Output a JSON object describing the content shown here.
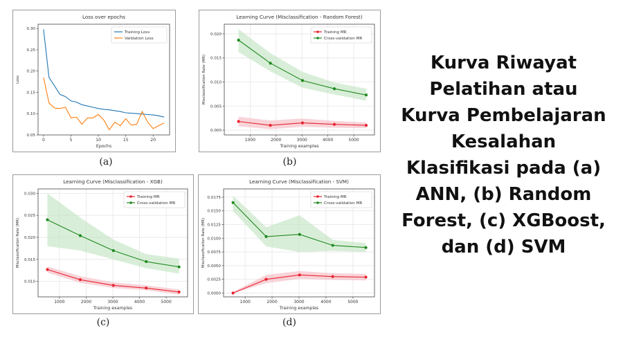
{
  "side_text_lines": [
    "Kurva Riwayat",
    "Pelatihan atau",
    "Kurva Pembelajaran",
    "Kesalahan",
    "Klasifikasi pada (a)",
    "ANN, (b) Random",
    "Forest, (c) XGBoost,",
    "dan (d) SVM"
  ],
  "captions": {
    "a": "(a)",
    "b": "(b)",
    "c": "(c)",
    "d": "(d)"
  },
  "colors": {
    "training_loss": "#1f77b4",
    "validation_loss": "#ff7f0e",
    "training_mr": "#e8222e",
    "cv_mr": "#1d8a1d",
    "training_band": "#f4b8bf",
    "cv_band": "#bfe3bf"
  },
  "chart_data": [
    {
      "id": "a",
      "type": "line",
      "title": "Loss over epochs",
      "xlabel": "Epochs",
      "ylabel": "Loss",
      "xlim": [
        -1,
        23
      ],
      "ylim": [
        0.05,
        0.31
      ],
      "xticks": [
        0,
        5,
        10,
        15,
        20
      ],
      "yticks": [
        0.05,
        0.1,
        0.15,
        0.2,
        0.25,
        0.3
      ],
      "ytick_labels": [
        "0.05",
        "0.10",
        "0.15",
        "0.20",
        "0.25",
        "0.30"
      ],
      "grid": false,
      "legend": "top-right",
      "series": [
        {
          "name": "Training Loss",
          "color_key": "training_loss",
          "markers": false,
          "x": [
            0,
            1,
            2,
            3,
            4,
            5,
            6,
            7,
            8,
            9,
            10,
            11,
            12,
            13,
            14,
            15,
            16,
            17,
            18,
            19,
            20,
            21,
            22
          ],
          "values": [
            0.298,
            0.185,
            0.165,
            0.145,
            0.14,
            0.13,
            0.127,
            0.121,
            0.118,
            0.115,
            0.112,
            0.11,
            0.109,
            0.107,
            0.105,
            0.102,
            0.101,
            0.1,
            0.099,
            0.098,
            0.097,
            0.095,
            0.092
          ]
        },
        {
          "name": "Validation Loss",
          "color_key": "validation_loss",
          "markers": false,
          "x": [
            0,
            1,
            2,
            3,
            4,
            5,
            6,
            7,
            8,
            9,
            10,
            11,
            12,
            13,
            14,
            15,
            16,
            17,
            18,
            19,
            20,
            21,
            22
          ],
          "values": [
            0.185,
            0.125,
            0.113,
            0.112,
            0.115,
            0.09,
            0.092,
            0.075,
            0.09,
            0.09,
            0.098,
            0.085,
            0.062,
            0.08,
            0.072,
            0.088,
            0.073,
            0.075,
            0.105,
            0.08,
            0.065,
            0.072,
            0.078
          ]
        }
      ]
    },
    {
      "id": "b",
      "type": "line",
      "title": "Learning Curve (Misclassification - Random Forest)",
      "xlabel": "Training examples",
      "ylabel": "Misclassification Rate (MR)",
      "xlim": [
        0,
        5800
      ],
      "ylim": [
        -0.001,
        0.022
      ],
      "xticks": [
        1000,
        2000,
        3000,
        4000,
        5000
      ],
      "yticks": [
        0.0,
        0.005,
        0.01,
        0.015,
        0.02
      ],
      "ytick_labels": [
        "0.000",
        "0.005",
        "0.010",
        "0.015",
        "0.020"
      ],
      "grid": true,
      "legend": "top-right",
      "series": [
        {
          "name": "Training MR",
          "color_key": "training_mr",
          "band_key": "training_band",
          "markers": true,
          "x": [
            550,
            1780,
            3020,
            4250,
            5480
          ],
          "values": [
            0.0018,
            0.001,
            0.0015,
            0.0012,
            0.001
          ],
          "lower": [
            0.0008,
            0.0002,
            0.0007,
            0.0005,
            0.0004
          ],
          "upper": [
            0.0028,
            0.002,
            0.0024,
            0.0019,
            0.0016
          ]
        },
        {
          "name": "Cross-validation MR",
          "color_key": "cv_mr",
          "band_key": "cv_band",
          "markers": true,
          "x": [
            550,
            1780,
            3020,
            4250,
            5480
          ],
          "values": [
            0.0187,
            0.0139,
            0.0103,
            0.0086,
            0.0073
          ],
          "lower": [
            0.0162,
            0.0122,
            0.0088,
            0.0074,
            0.0061
          ],
          "upper": [
            0.021,
            0.016,
            0.0121,
            0.0099,
            0.0086
          ]
        }
      ]
    },
    {
      "id": "c",
      "type": "line",
      "title": "Learning Curve (Misclassification - XGB)",
      "xlabel": "Training examples",
      "ylabel": "Misclassification Rate (MR)",
      "xlim": [
        200,
        5800
      ],
      "ylim": [
        0.0065,
        0.031
      ],
      "xticks": [
        1000,
        2000,
        3000,
        4000,
        5000
      ],
      "yticks": [
        0.01,
        0.015,
        0.02,
        0.025,
        0.03
      ],
      "ytick_labels": [
        "0.010",
        "0.015",
        "0.020",
        "0.025",
        "0.030"
      ],
      "grid": true,
      "legend": "top-right",
      "series": [
        {
          "name": "Training MR",
          "color_key": "training_mr",
          "band_key": "training_band",
          "markers": true,
          "x": [
            550,
            1780,
            3020,
            4250,
            5480
          ],
          "values": [
            0.0127,
            0.0104,
            0.0091,
            0.0085,
            0.0076
          ],
          "lower": [
            0.012,
            0.0097,
            0.0085,
            0.008,
            0.007
          ],
          "upper": [
            0.0134,
            0.0112,
            0.0098,
            0.0091,
            0.0082
          ]
        },
        {
          "name": "Cross-validation MR",
          "color_key": "cv_mr",
          "band_key": "cv_band",
          "markers": true,
          "x": [
            550,
            1780,
            3020,
            4250,
            5480
          ],
          "values": [
            0.024,
            0.0204,
            0.017,
            0.0145,
            0.0133
          ],
          "lower": [
            0.018,
            0.017,
            0.015,
            0.013,
            0.0118
          ],
          "upper": [
            0.03,
            0.0245,
            0.0195,
            0.0162,
            0.0152
          ]
        }
      ]
    },
    {
      "id": "d",
      "type": "line",
      "title": "Learning Curve (Misclassification - SVM)",
      "xlabel": "Training examples",
      "ylabel": "Misclassification Rate (MR)",
      "xlim": [
        200,
        5800
      ],
      "ylim": [
        -0.0007,
        0.019
      ],
      "xticks": [
        1000,
        2000,
        3000,
        4000,
        5000
      ],
      "yticks": [
        0.0,
        0.0025,
        0.005,
        0.0075,
        0.01,
        0.0125,
        0.015,
        0.0175
      ],
      "ytick_labels": [
        "0.0000",
        "0.0025",
        "0.0050",
        "0.0075",
        "0.0100",
        "0.0125",
        "0.0150",
        "0.0175"
      ],
      "grid": true,
      "legend": "top-right",
      "series": [
        {
          "name": "Training MR",
          "color_key": "training_mr",
          "band_key": "training_band",
          "markers": true,
          "x": [
            550,
            1780,
            3020,
            4250,
            5480
          ],
          "values": [
            0.0,
            0.0025,
            0.0033,
            0.003,
            0.0029
          ],
          "lower": [
            0.0,
            0.0018,
            0.0026,
            0.0024,
            0.0023
          ],
          "upper": [
            0.0002,
            0.0033,
            0.004,
            0.0036,
            0.0035
          ]
        },
        {
          "name": "Cross-validation MR",
          "color_key": "cv_mr",
          "band_key": "cv_band",
          "markers": true,
          "x": [
            550,
            1780,
            3020,
            4250,
            5480
          ],
          "values": [
            0.0165,
            0.0103,
            0.0107,
            0.0087,
            0.0083
          ],
          "lower": [
            0.015,
            0.0085,
            0.0075,
            0.0077,
            0.0075
          ],
          "upper": [
            0.0178,
            0.012,
            0.0142,
            0.0097,
            0.0091
          ]
        }
      ]
    }
  ]
}
